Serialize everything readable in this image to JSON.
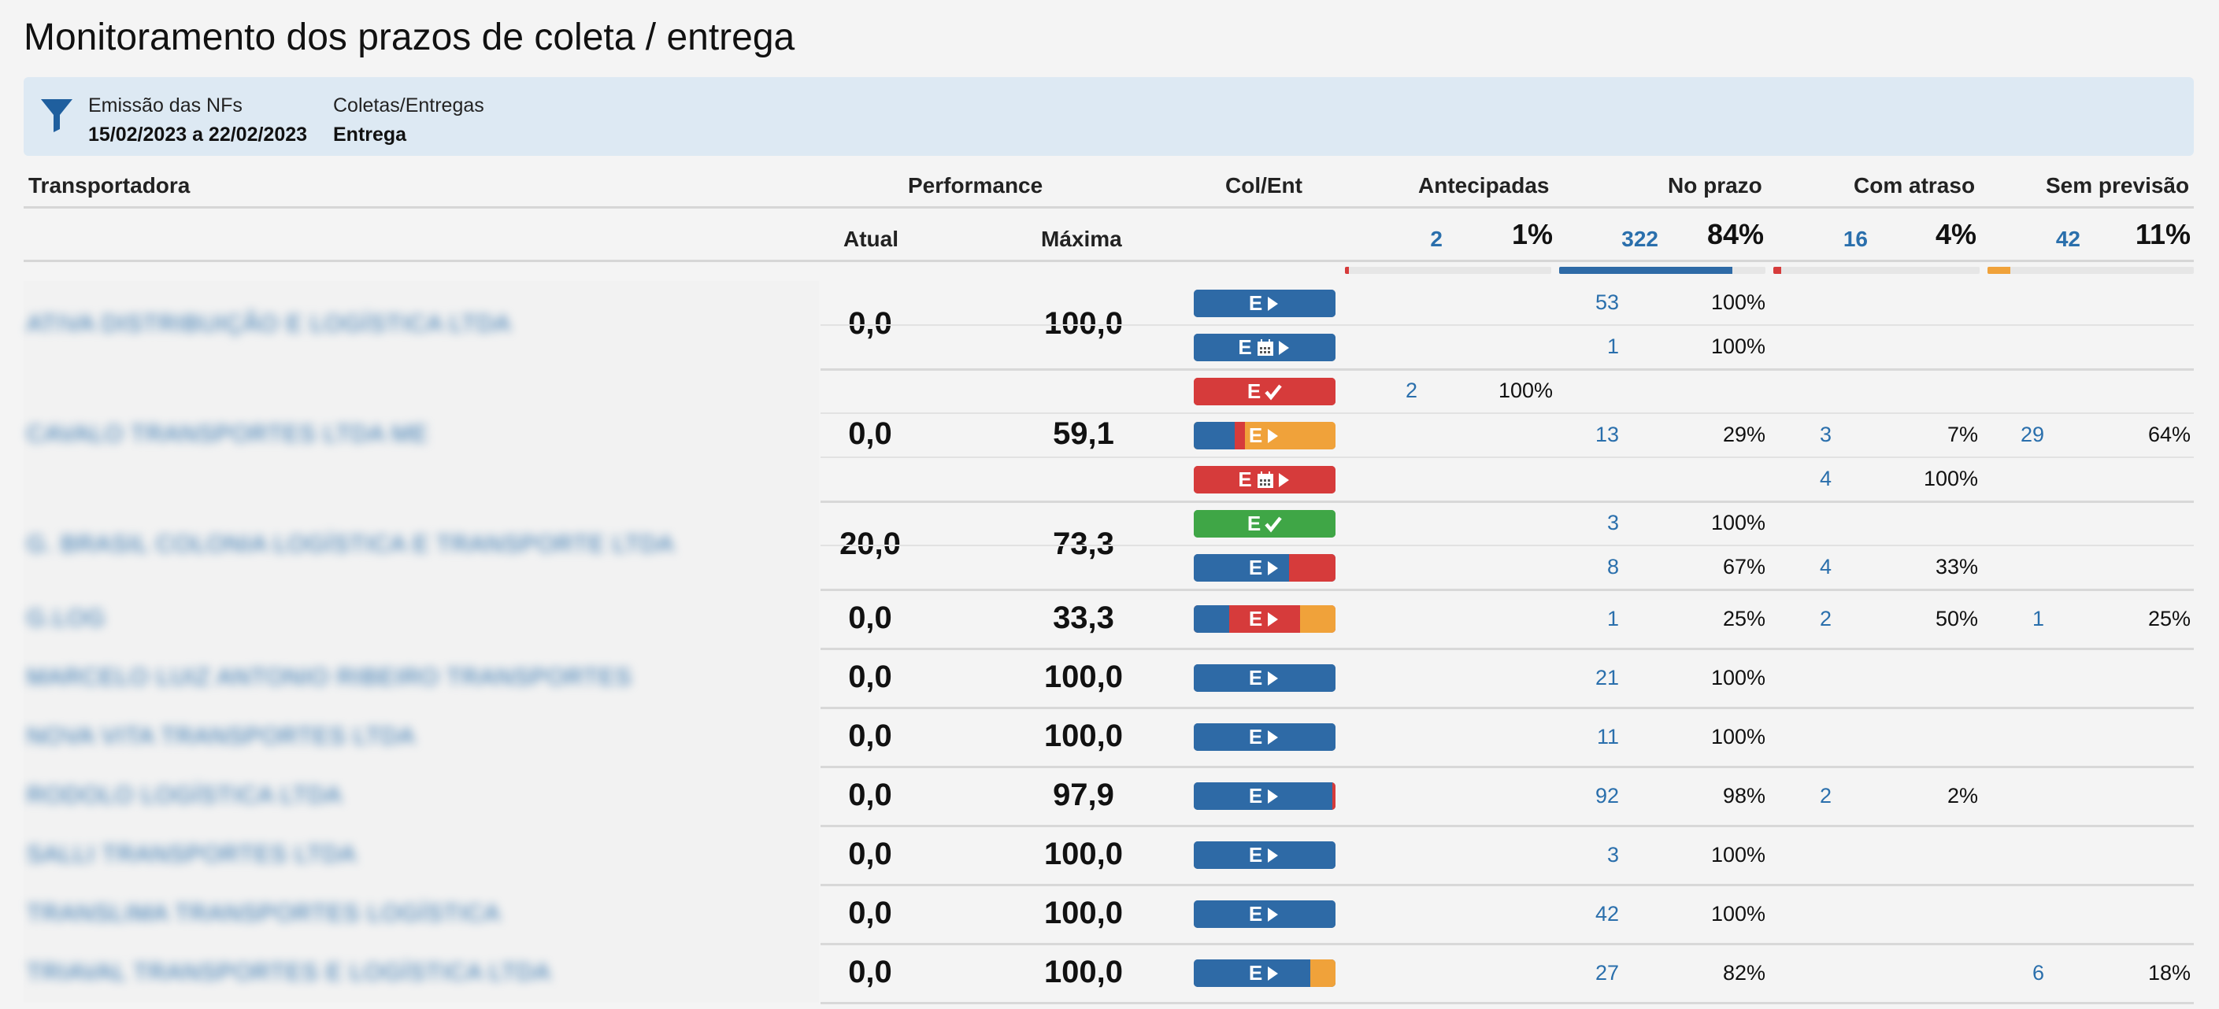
{
  "page": {
    "title": "Monitoramento dos prazos de coleta / entrega"
  },
  "filters": [
    {
      "label": "Emissão das NFs",
      "value": "15/02/2023 a 22/02/2023",
      "icon": "filter-icon"
    },
    {
      "label": "Coletas/Entregas",
      "value": "Entrega"
    }
  ],
  "headers": {
    "transportadora": "Transportadora",
    "performance": "Performance",
    "atual": "Atual",
    "maxima": "Máxima",
    "colent": "Col/Ent",
    "antecipadas": "Antecipadas",
    "no_prazo": "No prazo",
    "com_atraso": "Com atraso",
    "sem_previsao": "Sem previsão"
  },
  "summary": {
    "antecipadas": {
      "count": "2",
      "pct": "1%",
      "fraction": 0.01
    },
    "no_prazo": {
      "count": "322",
      "pct": "84%",
      "fraction": 0.84
    },
    "com_atraso": {
      "count": "16",
      "pct": "4%",
      "fraction": 0.04
    },
    "sem_previsao": {
      "count": "42",
      "pct": "11%",
      "fraction": 0.11
    }
  },
  "colors": {
    "blue": "#2e6aa6",
    "red": "#d63b3b",
    "orange": "#f0a23a",
    "green": "#3fa646",
    "link": "#2a6fac"
  },
  "carriers": [
    {
      "name": "ATIVA DISTRIBUIÇÃO E LOGÍSTICA LTDA",
      "atual": "0,0",
      "maxima": "100,0",
      "rows": [
        {
          "badge": {
            "letter": "E",
            "icon": "play-icon",
            "bg": "blue",
            "segments": [
              [
                "blue",
                1
              ]
            ]
          },
          "no_prazo": [
            "53",
            "100%"
          ]
        },
        {
          "badge": {
            "letter": "E",
            "icon": "calendar-play-icon",
            "bg": "blue",
            "segments": [
              [
                "blue",
                1
              ]
            ]
          },
          "no_prazo": [
            "1",
            "100%"
          ]
        }
      ]
    },
    {
      "name": "CAVALO TRANSPORTES LTDA ME",
      "atual": "0,0",
      "maxima": "59,1",
      "rows": [
        {
          "badge": {
            "letter": "E",
            "icon": "check-icon",
            "bg": "red",
            "segments": [
              [
                "red",
                1
              ]
            ]
          },
          "antecipadas": [
            "2",
            "100%"
          ]
        },
        {
          "badge": {
            "letter": "E",
            "icon": "play-icon",
            "bg": "orange",
            "segments": [
              [
                "blue",
                0.29
              ],
              [
                "red",
                0.07
              ],
              [
                "orange",
                0.64
              ]
            ]
          },
          "no_prazo": [
            "13",
            "29%"
          ],
          "com_atraso": [
            "3",
            "7%"
          ],
          "sem_previsao": [
            "29",
            "64%"
          ]
        },
        {
          "badge": {
            "letter": "E",
            "icon": "calendar-play-icon",
            "bg": "red",
            "segments": [
              [
                "red",
                1
              ]
            ]
          },
          "com_atraso": [
            "4",
            "100%"
          ]
        }
      ]
    },
    {
      "name": "G. BRASIL COLONIA LOGÍSTICA E TRANSPORTE LTDA",
      "atual": "20,0",
      "maxima": "73,3",
      "rows": [
        {
          "badge": {
            "letter": "E",
            "icon": "check-icon",
            "bg": "green",
            "segments": [
              [
                "green",
                1
              ]
            ]
          },
          "no_prazo": [
            "3",
            "100%"
          ]
        },
        {
          "badge": {
            "letter": "E",
            "icon": "play-icon",
            "bg": "blue",
            "segments": [
              [
                "blue",
                0.67
              ],
              [
                "red",
                0.33
              ]
            ]
          },
          "no_prazo": [
            "8",
            "67%"
          ],
          "com_atraso": [
            "4",
            "33%"
          ]
        }
      ]
    },
    {
      "name": "G.LOG",
      "atual": "0,0",
      "maxima": "33,3",
      "rows": [
        {
          "badge": {
            "letter": "E",
            "icon": "play-icon",
            "bg": "red",
            "segments": [
              [
                "blue",
                0.25
              ],
              [
                "red",
                0.5
              ],
              [
                "orange",
                0.25
              ]
            ]
          },
          "no_prazo": [
            "1",
            "25%"
          ],
          "com_atraso": [
            "2",
            "50%"
          ],
          "sem_previsao": [
            "1",
            "25%"
          ]
        }
      ]
    },
    {
      "name": "MARCELO LUIZ ANTONIO RIBEIRO TRANSPORTES",
      "atual": "0,0",
      "maxima": "100,0",
      "rows": [
        {
          "badge": {
            "letter": "E",
            "icon": "play-icon",
            "bg": "blue",
            "segments": [
              [
                "blue",
                1
              ]
            ]
          },
          "no_prazo": [
            "21",
            "100%"
          ]
        }
      ]
    },
    {
      "name": "NOVA VITA TRANSPORTES LTDA",
      "atual": "0,0",
      "maxima": "100,0",
      "rows": [
        {
          "badge": {
            "letter": "E",
            "icon": "play-icon",
            "bg": "blue",
            "segments": [
              [
                "blue",
                1
              ]
            ]
          },
          "no_prazo": [
            "11",
            "100%"
          ]
        }
      ]
    },
    {
      "name": "RODOLO LOGÍSTICA LTDA",
      "atual": "0,0",
      "maxima": "97,9",
      "rows": [
        {
          "badge": {
            "letter": "E",
            "icon": "play-icon",
            "bg": "blue",
            "segments": [
              [
                "blue",
                0.98
              ],
              [
                "red",
                0.02
              ]
            ]
          },
          "no_prazo": [
            "92",
            "98%"
          ],
          "com_atraso": [
            "2",
            "2%"
          ]
        }
      ]
    },
    {
      "name": "SALLI TRANSPORTES LTDA",
      "atual": "0,0",
      "maxima": "100,0",
      "rows": [
        {
          "badge": {
            "letter": "E",
            "icon": "play-icon",
            "bg": "blue",
            "segments": [
              [
                "blue",
                1
              ]
            ]
          },
          "no_prazo": [
            "3",
            "100%"
          ]
        }
      ]
    },
    {
      "name": "TRANSLIMA TRANSPORTES LOGÍSTICA",
      "atual": "0,0",
      "maxima": "100,0",
      "rows": [
        {
          "badge": {
            "letter": "E",
            "icon": "play-icon",
            "bg": "blue",
            "segments": [
              [
                "blue",
                1
              ]
            ]
          },
          "no_prazo": [
            "42",
            "100%"
          ]
        }
      ]
    },
    {
      "name": "TRIAVAL TRANSPORTES E LOGÍSTICA LTDA",
      "atual": "0,0",
      "maxima": "100,0",
      "rows": [
        {
          "badge": {
            "letter": "E",
            "icon": "play-icon",
            "bg": "blue",
            "segments": [
              [
                "blue",
                0.82
              ],
              [
                "orange",
                0.18
              ]
            ]
          },
          "no_prazo": [
            "27",
            "82%"
          ],
          "sem_previsao": [
            "6",
            "18%"
          ]
        }
      ]
    }
  ]
}
